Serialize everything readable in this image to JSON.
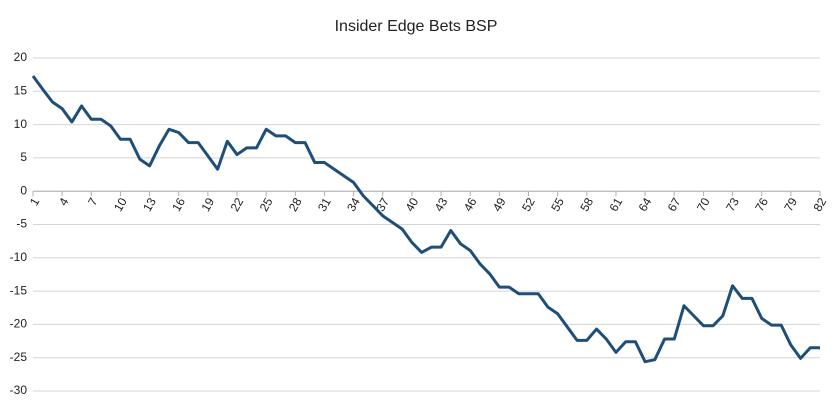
{
  "chart_data": {
    "type": "line",
    "title": "Insider Edge Bets BSP",
    "x": [
      1,
      2,
      3,
      4,
      5,
      6,
      7,
      8,
      9,
      10,
      11,
      12,
      13,
      14,
      15,
      16,
      17,
      18,
      19,
      20,
      21,
      22,
      23,
      24,
      25,
      26,
      27,
      28,
      29,
      30,
      31,
      32,
      33,
      34,
      35,
      36,
      37,
      38,
      39,
      40,
      41,
      42,
      43,
      44,
      45,
      46,
      47,
      48,
      49,
      50,
      51,
      52,
      53,
      54,
      55,
      56,
      57,
      58,
      59,
      60,
      61,
      62,
      63,
      64,
      65,
      66,
      67,
      68,
      69,
      70,
      71,
      72,
      73,
      74,
      75,
      76,
      77,
      78,
      79,
      80,
      81,
      82
    ],
    "series": [
      {
        "name": "Insider Edge Bets BSP",
        "color": "#1f4e79",
        "values": [
          17.3,
          15.3,
          13.4,
          12.4,
          10.4,
          12.8,
          10.8,
          10.8,
          9.8,
          7.8,
          7.8,
          4.8,
          3.8,
          6.8,
          9.3,
          8.8,
          7.3,
          7.3,
          5.3,
          3.3,
          7.5,
          5.5,
          6.5,
          6.5,
          9.3,
          8.3,
          8.3,
          7.3,
          7.3,
          4.3,
          4.3,
          3.3,
          2.3,
          1.3,
          -0.7,
          -2.2,
          -3.7,
          -4.7,
          -5.7,
          -7.7,
          -9.2,
          -8.4,
          -8.4,
          -5.9,
          -7.9,
          -8.9,
          -10.9,
          -12.4,
          -14.4,
          -14.4,
          -15.4,
          -15.4,
          -15.4,
          -17.4,
          -18.4,
          -20.4,
          -22.4,
          -22.4,
          -20.7,
          -22.2,
          -24.2,
          -22.6,
          -22.6,
          -25.6,
          -25.3,
          -22.2,
          -22.2,
          -17.2,
          -18.7,
          -20.2,
          -20.2,
          -18.7,
          -14.2,
          -16.1,
          -16.1,
          -19.1,
          -20.1,
          -20.1,
          -23.1,
          -25.1,
          -23.5,
          -23.5
        ]
      }
    ],
    "xlim": [
      1,
      82
    ],
    "xticks": [
      1,
      4,
      7,
      10,
      13,
      16,
      19,
      22,
      25,
      28,
      31,
      34,
      37,
      40,
      43,
      46,
      49,
      52,
      55,
      58,
      61,
      64,
      67,
      70,
      73,
      76,
      79,
      82
    ],
    "ylim": [
      -30,
      20
    ],
    "yticks": [
      -30,
      -25,
      -20,
      -15,
      -10,
      -5,
      0,
      5,
      10,
      15,
      20
    ],
    "grid": true
  }
}
